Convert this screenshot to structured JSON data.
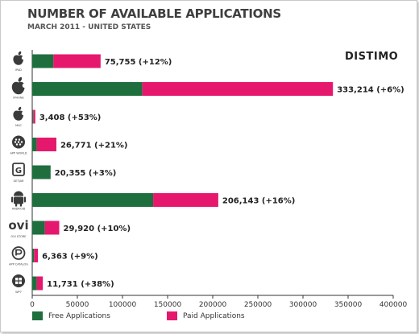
{
  "title": "NUMBER OF AVAILABLE APPLICATIONS",
  "subtitle": "MARCH 2011 - UNITED STATES",
  "brand": "DISTIMO",
  "colors": {
    "free": "#1e6e3e",
    "paid": "#e6186e"
  },
  "legend": {
    "free_label": "Free Applications",
    "paid_label": "Paid Applications"
  },
  "chart_data": {
    "type": "bar",
    "orientation": "horizontal",
    "stacked": true,
    "xlim": [
      0,
      400000
    ],
    "ticks": [
      0,
      50000,
      100000,
      150000,
      200000,
      250000,
      300000,
      350000,
      400000
    ],
    "grid": false,
    "legend_position": "bottom",
    "series": [
      {
        "name": "Free Applications",
        "values": [
          23500,
          122000,
          1100,
          5000,
          20355,
          134000,
          14000,
          2000,
          5000
        ]
      },
      {
        "name": "Paid Applications",
        "values": [
          52255,
          211214,
          2308,
          21771,
          0,
          72143,
          15920,
          4363,
          6731
        ]
      }
    ],
    "rows": [
      {
        "icon": "ipad-apple-icon",
        "icon_label": "IPAD",
        "total_label": "75,755 (+12%)"
      },
      {
        "icon": "iphone-apple-icon",
        "icon_label": "IPHONE",
        "total_label": "333,214 (+6%)"
      },
      {
        "icon": "mac-apple-icon",
        "icon_label": "MAC",
        "total_label": "3,408 (+53%)"
      },
      {
        "icon": "blackberry-icon",
        "icon_label": "APP WORLD",
        "total_label": "26,771 (+21%)"
      },
      {
        "icon": "getjar-icon",
        "icon_label": "GETJAR",
        "total_label": "20,355 (+3%)"
      },
      {
        "icon": "android-icon",
        "icon_label": "ANDROID",
        "total_label": "206,143 (+16%)"
      },
      {
        "icon": "ovi-icon",
        "icon_label": "OVI STORE",
        "total_label": "29,920 (+10%)"
      },
      {
        "icon": "palm-icon",
        "icon_label": "APP CATALOG",
        "total_label": "6,363 (+9%)"
      },
      {
        "icon": "windows-phone-icon",
        "icon_label": "WP7",
        "total_label": "11,731 (+38%)"
      }
    ]
  }
}
